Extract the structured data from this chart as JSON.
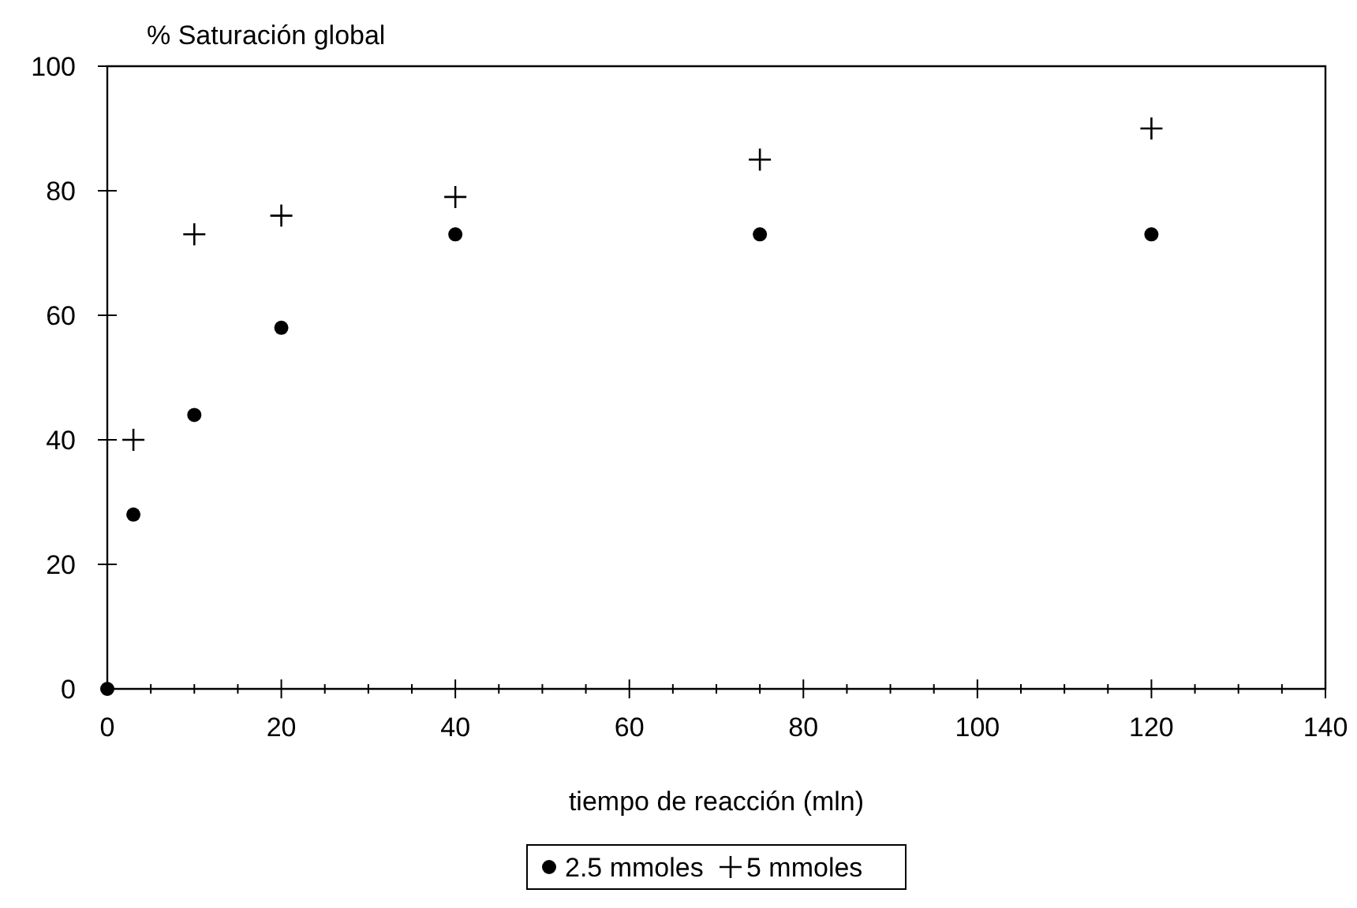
{
  "chart_data": {
    "type": "scatter",
    "ylabel": "% Saturación global",
    "xlabel": "tiempo de reacción (mln)",
    "xlim": [
      0,
      140
    ],
    "xticks": [
      0,
      20,
      40,
      60,
      80,
      100,
      120,
      140
    ],
    "ylim": [
      0,
      100
    ],
    "yticks": [
      0,
      20,
      40,
      60,
      80,
      100
    ],
    "grid": false,
    "legend": "bottom",
    "series": [
      {
        "name": "2.5 mmoles",
        "color": "#000000",
        "marker": "circle",
        "x": [
          0,
          3,
          10,
          20,
          40,
          75,
          120
        ],
        "values": [
          0,
          28,
          44,
          58,
          73,
          73,
          73
        ]
      },
      {
        "name": "5 mmoles",
        "color": "#000000",
        "marker": "cross",
        "x": [
          3,
          10,
          20,
          40,
          75,
          120
        ],
        "values": [
          40,
          73,
          76,
          79,
          85,
          90
        ]
      }
    ]
  }
}
